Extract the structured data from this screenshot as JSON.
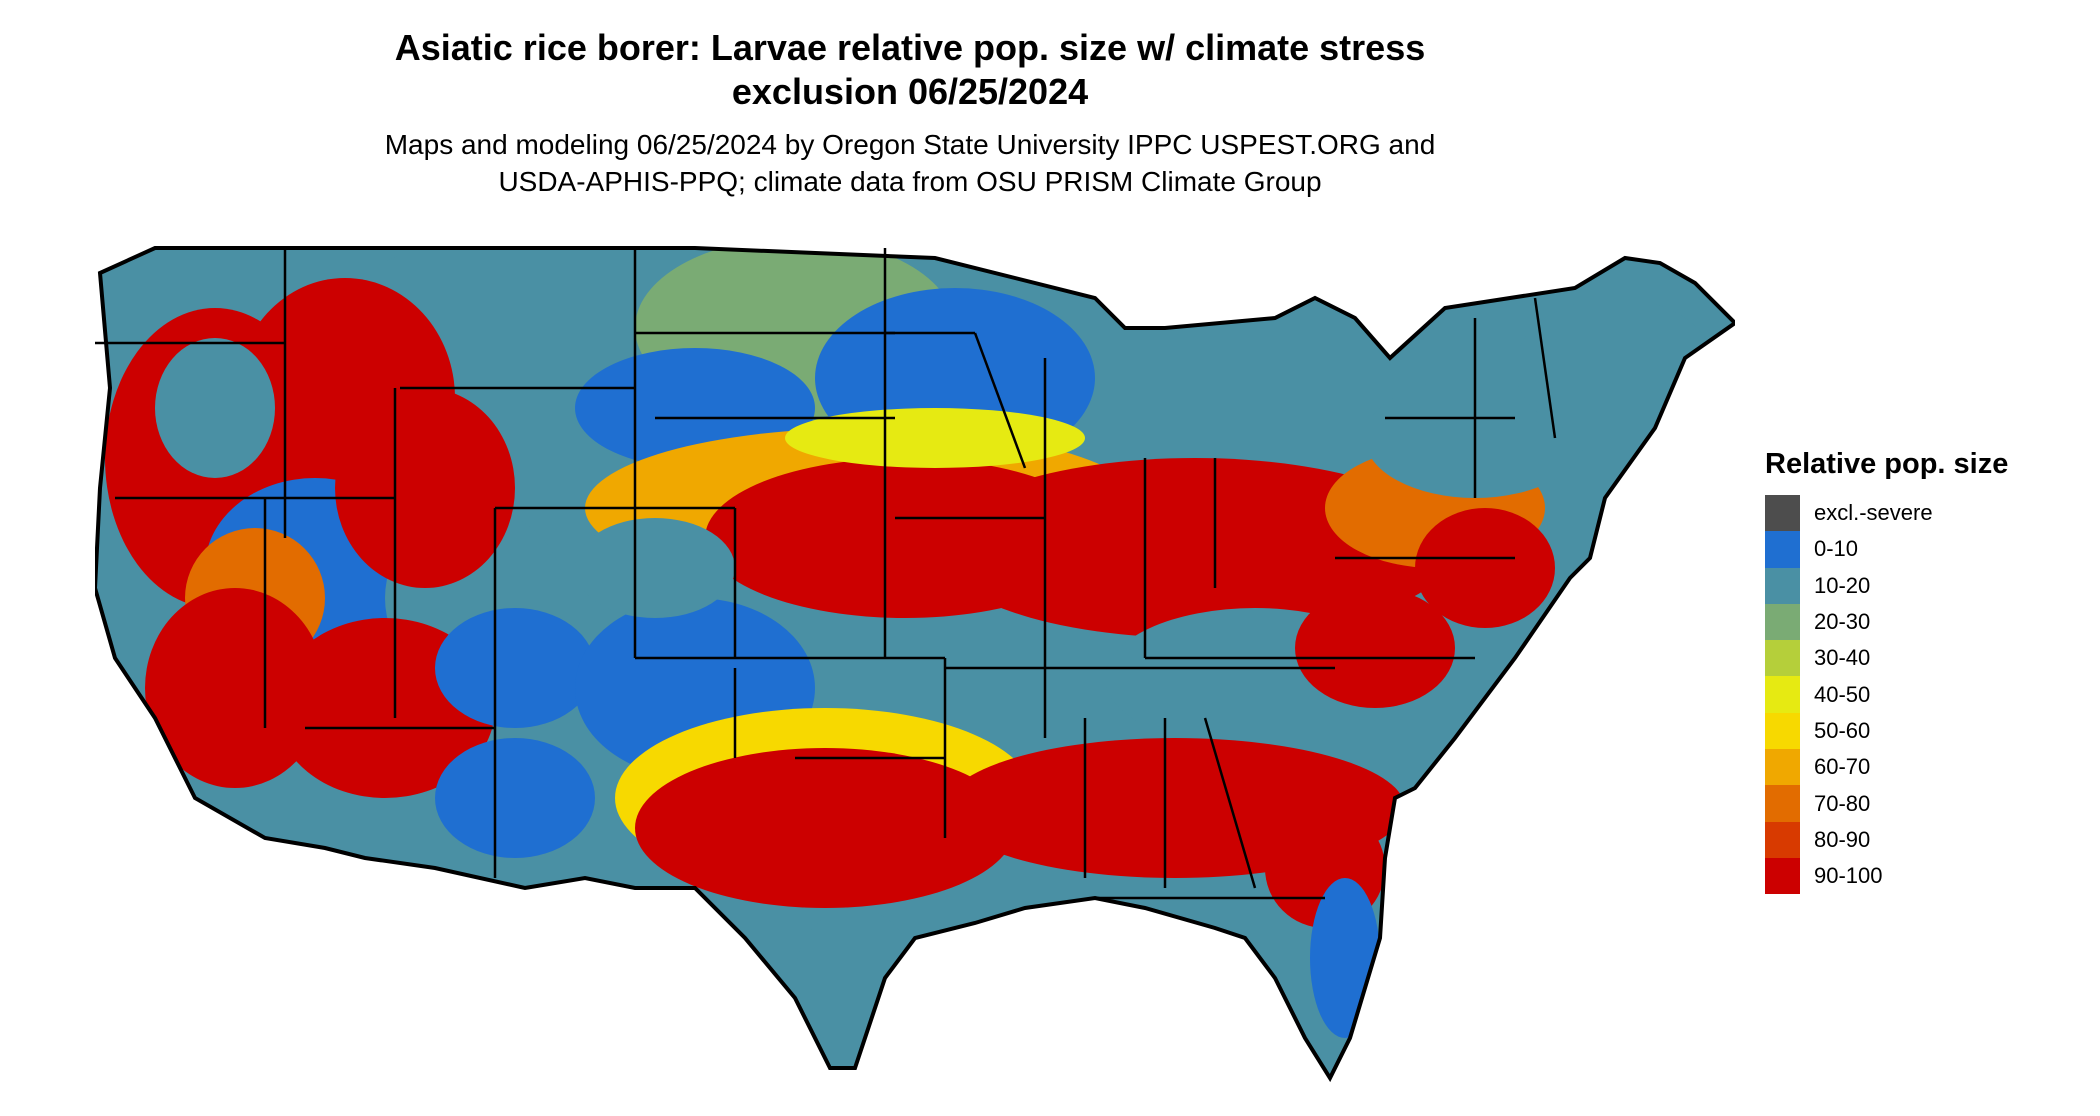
{
  "title_line1": "Asiatic rice borer: Larvae relative pop. size w/ climate stress",
  "title_line2": "exclusion 06/25/2024",
  "subtitle_line1": "Maps and modeling 06/25/2024 by Oregon State University IPPC USPEST.ORG and",
  "subtitle_line2": "USDA-APHIS-PPQ; climate data from OSU PRISM Climate Group",
  "legend": {
    "title": "Relative pop. size",
    "items": [
      {
        "label": "excl.-severe",
        "color": "#4d4d4d"
      },
      {
        "label": "0-10",
        "color": "#1f6fd1"
      },
      {
        "label": "10-20",
        "color": "#4a90a4"
      },
      {
        "label": "20-30",
        "color": "#7aab74"
      },
      {
        "label": "30-40",
        "color": "#b5cf3a"
      },
      {
        "label": "40-50",
        "color": "#e6ea12"
      },
      {
        "label": "50-60",
        "color": "#f7d900"
      },
      {
        "label": "60-70",
        "color": "#f0a800"
      },
      {
        "label": "70-80",
        "color": "#e26c00"
      },
      {
        "label": "80-90",
        "color": "#d83a00"
      },
      {
        "label": "90-100",
        "color": "#cc0000"
      }
    ]
  }
}
